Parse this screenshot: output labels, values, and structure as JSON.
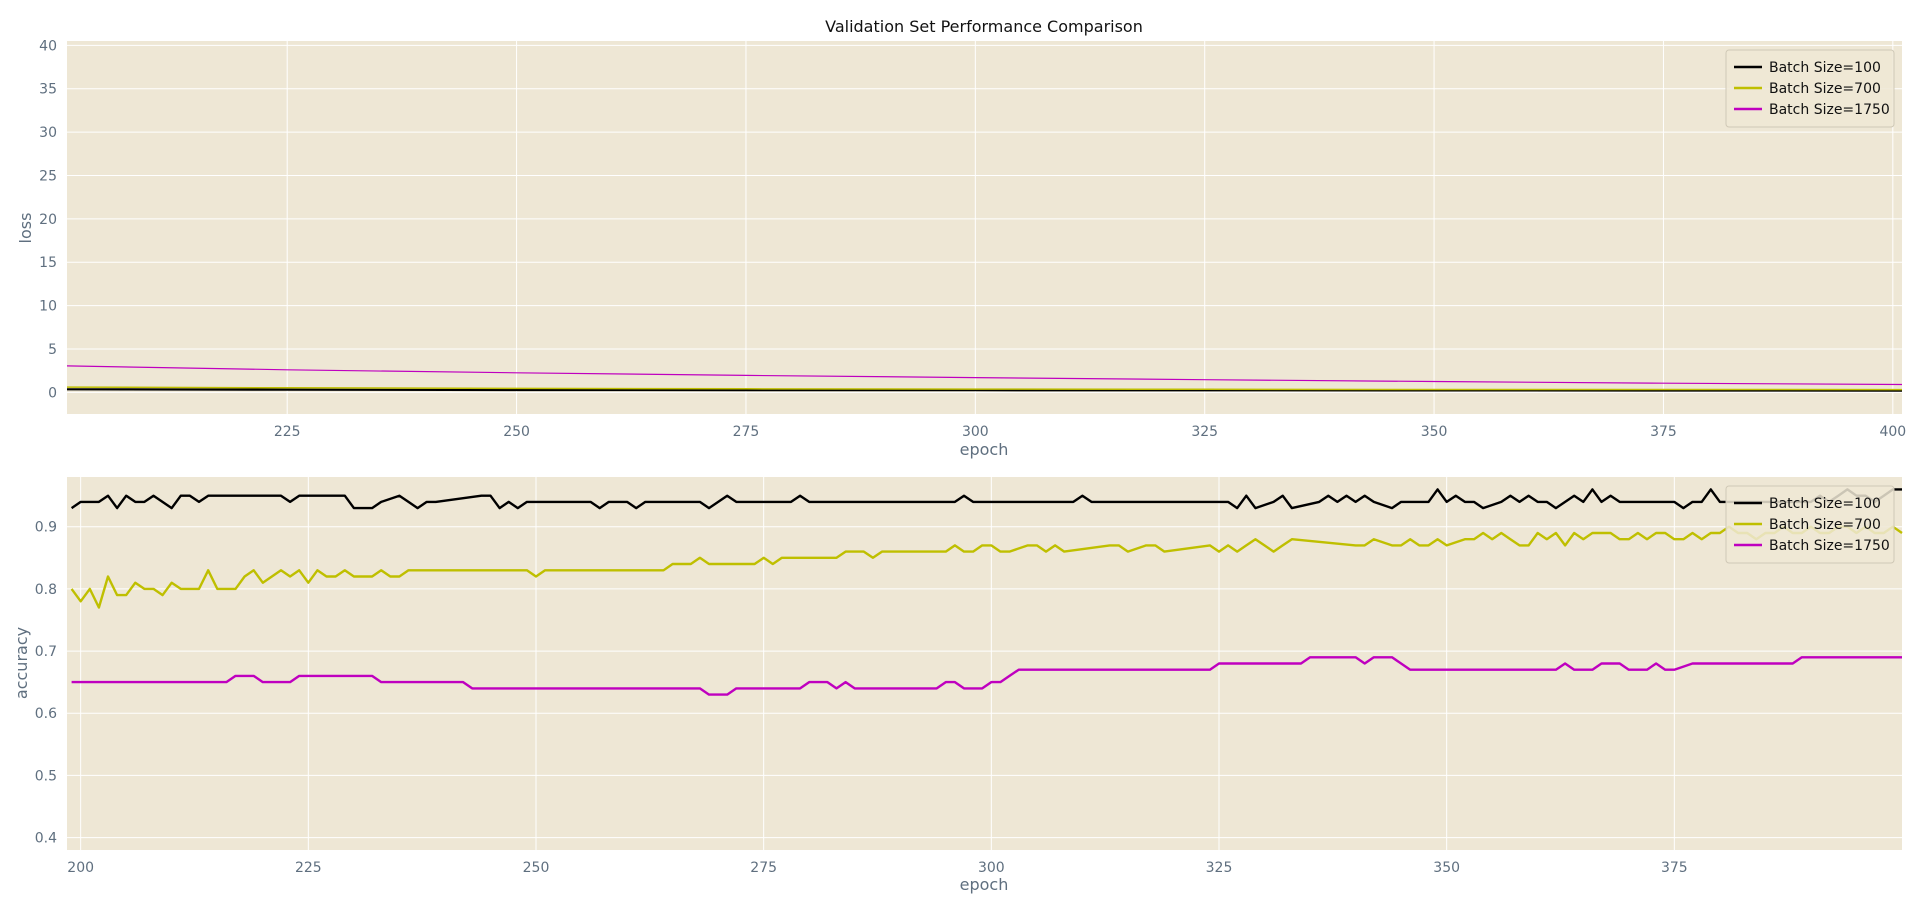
{
  "chart_data": [
    {
      "type": "line",
      "title": "Validation Set Performance Comparison",
      "xlabel": "epoch",
      "ylabel": "loss",
      "xlim": [
        201,
        401
      ],
      "ylim": [
        -2.5,
        40.5
      ],
      "xticks": [
        225,
        250,
        275,
        300,
        325,
        350,
        375,
        400
      ],
      "yticks": [
        0,
        5,
        10,
        15,
        20,
        25,
        30,
        35,
        40
      ],
      "grid": true,
      "legend": "top-right",
      "series": [
        {
          "name": "Batch Size=100",
          "color": "#000000",
          "x": [
            201,
            225,
            250,
            275,
            300,
            325,
            350,
            375,
            401
          ],
          "values": [
            0.35,
            0.3,
            0.27,
            0.25,
            0.24,
            0.23,
            0.22,
            0.21,
            0.2
          ]
        },
        {
          "name": "Batch Size=700",
          "color": "#bfbf00",
          "x": [
            201,
            225,
            250,
            275,
            300,
            325,
            350,
            375,
            401
          ],
          "values": [
            0.6,
            0.52,
            0.45,
            0.4,
            0.37,
            0.35,
            0.33,
            0.32,
            0.31
          ]
        },
        {
          "name": "Batch Size=1750",
          "color": "#bf00bf",
          "x": [
            201,
            225,
            250,
            275,
            300,
            325,
            350,
            375,
            401
          ],
          "values": [
            3.05,
            2.6,
            2.25,
            1.95,
            1.7,
            1.45,
            1.25,
            1.05,
            0.9
          ]
        }
      ]
    },
    {
      "type": "line",
      "title": "",
      "xlabel": "epoch",
      "ylabel": "accuracy",
      "xlim": [
        198.5,
        400
      ],
      "ylim": [
        0.38,
        0.98
      ],
      "xticks": [
        200,
        225,
        250,
        275,
        300,
        325,
        350,
        375
      ],
      "yticks": [
        0.4,
        0.5,
        0.6,
        0.7,
        0.8,
        0.9
      ],
      "ytick_labels": [
        "0.4",
        "0.5",
        "0.6",
        "0.7",
        "0.8",
        "0.9"
      ],
      "grid": true,
      "legend": "top-right",
      "series": [
        {
          "name": "Batch Size=100",
          "color": "#000000",
          "x": [
            199,
            200,
            202,
            203,
            204,
            205,
            206,
            207,
            208,
            210,
            211,
            212,
            213,
            214,
            215,
            222,
            223,
            224,
            229,
            230,
            232,
            233,
            235,
            236,
            237,
            238,
            239,
            244,
            245,
            246,
            247,
            248,
            249,
            250,
            256,
            257,
            258,
            260,
            261,
            262,
            268,
            269,
            271,
            272,
            278,
            279,
            280,
            296,
            297,
            298,
            309,
            310,
            311,
            326,
            327,
            328,
            329,
            331,
            332,
            333,
            336,
            337,
            338,
            339,
            340,
            341,
            342,
            344,
            345,
            348,
            349,
            350,
            351,
            352,
            353,
            354,
            356,
            357,
            358,
            359,
            360,
            361,
            362,
            364,
            365,
            366,
            367,
            368,
            369,
            375,
            376,
            377,
            378,
            379,
            380,
            390,
            391,
            392,
            393,
            394,
            395,
            396,
            397,
            398,
            399,
            400
          ],
          "values": [
            0.93,
            0.94,
            0.94,
            0.95,
            0.93,
            0.95,
            0.94,
            0.94,
            0.95,
            0.93,
            0.95,
            0.95,
            0.94,
            0.95,
            0.95,
            0.95,
            0.94,
            0.95,
            0.95,
            0.93,
            0.93,
            0.94,
            0.95,
            0.94,
            0.93,
            0.94,
            0.94,
            0.95,
            0.95,
            0.93,
            0.94,
            0.93,
            0.94,
            0.94,
            0.94,
            0.93,
            0.94,
            0.94,
            0.93,
            0.94,
            0.94,
            0.93,
            0.95,
            0.94,
            0.94,
            0.95,
            0.94,
            0.94,
            0.95,
            0.94,
            0.94,
            0.95,
            0.94,
            0.94,
            0.93,
            0.95,
            0.93,
            0.94,
            0.95,
            0.93,
            0.94,
            0.95,
            0.94,
            0.95,
            0.94,
            0.95,
            0.94,
            0.93,
            0.94,
            0.94,
            0.96,
            0.94,
            0.95,
            0.94,
            0.94,
            0.93,
            0.94,
            0.95,
            0.94,
            0.95,
            0.94,
            0.94,
            0.93,
            0.95,
            0.94,
            0.96,
            0.94,
            0.95,
            0.94,
            0.94,
            0.93,
            0.94,
            0.94,
            0.96,
            0.94,
            0.94,
            0.95,
            0.94,
            0.95,
            0.96,
            0.95,
            0.95,
            0.94,
            0.95,
            0.96,
            0.96
          ]
        },
        {
          "name": "Batch Size=700",
          "color": "#bfbf00",
          "x": [
            199,
            200,
            201,
            202,
            203,
            204,
            205,
            206,
            207,
            208,
            209,
            210,
            211,
            212,
            213,
            214,
            215,
            216,
            217,
            218,
            219,
            220,
            221,
            222,
            223,
            224,
            225,
            226,
            227,
            228,
            229,
            230,
            231,
            232,
            233,
            234,
            235,
            236,
            237,
            238,
            239,
            249,
            250,
            251,
            264,
            265,
            267,
            268,
            269,
            274,
            275,
            276,
            277,
            283,
            284,
            286,
            287,
            288,
            295,
            296,
            297,
            298,
            299,
            300,
            301,
            302,
            304,
            305,
            306,
            307,
            308,
            313,
            314,
            315,
            317,
            318,
            319,
            324,
            325,
            326,
            327,
            328,
            329,
            330,
            331,
            332,
            333,
            340,
            341,
            342,
            344,
            345,
            346,
            347,
            348,
            349,
            350,
            352,
            353,
            354,
            355,
            356,
            357,
            358,
            359,
            360,
            361,
            362,
            363,
            364,
            365,
            366,
            367,
            368,
            369,
            370,
            371,
            372,
            373,
            374,
            375,
            376,
            377,
            378,
            379,
            380,
            381,
            382,
            383,
            384,
            385,
            386,
            387,
            388,
            389,
            390,
            391,
            392,
            393,
            394,
            395,
            396,
            397,
            398,
            399,
            400
          ],
          "values": [
            0.8,
            0.78,
            0.8,
            0.77,
            0.82,
            0.79,
            0.79,
            0.81,
            0.8,
            0.8,
            0.79,
            0.81,
            0.8,
            0.8,
            0.8,
            0.83,
            0.8,
            0.8,
            0.8,
            0.82,
            0.83,
            0.81,
            0.82,
            0.83,
            0.82,
            0.83,
            0.81,
            0.83,
            0.82,
            0.82,
            0.83,
            0.82,
            0.82,
            0.82,
            0.83,
            0.82,
            0.82,
            0.83,
            0.83,
            0.83,
            0.83,
            0.83,
            0.82,
            0.83,
            0.83,
            0.84,
            0.84,
            0.85,
            0.84,
            0.84,
            0.85,
            0.84,
            0.85,
            0.85,
            0.86,
            0.86,
            0.85,
            0.86,
            0.86,
            0.87,
            0.86,
            0.86,
            0.87,
            0.87,
            0.86,
            0.86,
            0.87,
            0.87,
            0.86,
            0.87,
            0.86,
            0.87,
            0.87,
            0.86,
            0.87,
            0.87,
            0.86,
            0.87,
            0.86,
            0.87,
            0.86,
            0.87,
            0.88,
            0.87,
            0.86,
            0.87,
            0.88,
            0.87,
            0.87,
            0.88,
            0.87,
            0.87,
            0.88,
            0.87,
            0.87,
            0.88,
            0.87,
            0.88,
            0.88,
            0.89,
            0.88,
            0.89,
            0.88,
            0.87,
            0.87,
            0.89,
            0.88,
            0.89,
            0.87,
            0.89,
            0.88,
            0.89,
            0.89,
            0.89,
            0.88,
            0.88,
            0.89,
            0.88,
            0.89,
            0.89,
            0.88,
            0.88,
            0.89,
            0.88,
            0.89,
            0.89,
            0.9,
            0.89,
            0.89,
            0.88,
            0.89,
            0.89,
            0.9,
            0.89,
            0.89,
            0.9,
            0.89,
            0.89,
            0.9,
            0.9,
            0.89,
            0.9,
            0.89,
            0.89,
            0.9,
            0.89
          ]
        },
        {
          "name": "Batch Size=1750",
          "color": "#bf00bf",
          "x": [
            199,
            216,
            217,
            219,
            220,
            223,
            224,
            232,
            233,
            242,
            243,
            268,
            269,
            271,
            272,
            279,
            280,
            282,
            283,
            284,
            285,
            294,
            295,
            296,
            297,
            299,
            300,
            301,
            302,
            303,
            324,
            325,
            334,
            335,
            340,
            341,
            342,
            343,
            344,
            346,
            347,
            362,
            363,
            364,
            366,
            367,
            369,
            370,
            372,
            373,
            374,
            375,
            377,
            378,
            388,
            389,
            400
          ],
          "values": [
            0.65,
            0.65,
            0.66,
            0.66,
            0.65,
            0.65,
            0.66,
            0.66,
            0.65,
            0.65,
            0.64,
            0.64,
            0.63,
            0.63,
            0.64,
            0.64,
            0.65,
            0.65,
            0.64,
            0.65,
            0.64,
            0.64,
            0.65,
            0.65,
            0.64,
            0.64,
            0.65,
            0.65,
            0.66,
            0.67,
            0.67,
            0.68,
            0.68,
            0.69,
            0.69,
            0.68,
            0.69,
            0.69,
            0.69,
            0.67,
            0.67,
            0.67,
            0.68,
            0.67,
            0.67,
            0.68,
            0.68,
            0.67,
            0.67,
            0.68,
            0.67,
            0.67,
            0.68,
            0.68,
            0.68,
            0.69,
            0.69
          ]
        }
      ]
    }
  ]
}
